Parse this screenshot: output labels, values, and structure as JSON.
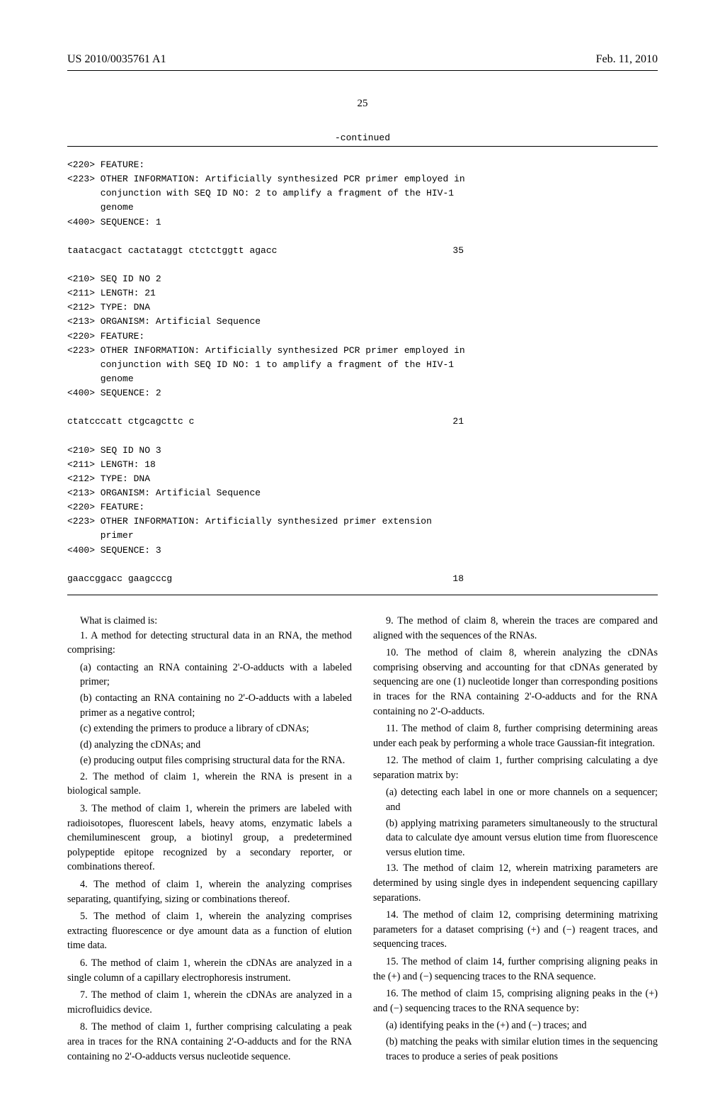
{
  "header": {
    "left": "US 2010/0035761 A1",
    "right": "Feb. 11, 2010"
  },
  "page_number": "25",
  "continued_label": "-continued",
  "sequences": {
    "block1": {
      "lines": [
        "<220> FEATURE:",
        "<223> OTHER INFORMATION: Artificially synthesized PCR primer employed in",
        "      conjunction with SEQ ID NO: 2 to amplify a fragment of the HIV-1",
        "      genome",
        "",
        "<400> SEQUENCE: 1"
      ],
      "data": "taatacgact cactataggt ctctctggtt agacc",
      "data_num": "35"
    },
    "block2": {
      "lines": [
        "<210> SEQ ID NO 2",
        "<211> LENGTH: 21",
        "<212> TYPE: DNA",
        "<213> ORGANISM: Artificial Sequence",
        "<220> FEATURE:",
        "<223> OTHER INFORMATION: Artificially synthesized PCR primer employed in",
        "      conjunction with SEQ ID NO: 1 to amplify a fragment of the HIV-1",
        "      genome",
        "",
        "<400> SEQUENCE: 2"
      ],
      "data": "ctatcccatt ctgcagcttc c",
      "data_num": "21"
    },
    "block3": {
      "lines": [
        "<210> SEQ ID NO 3",
        "<211> LENGTH: 18",
        "<212> TYPE: DNA",
        "<213> ORGANISM: Artificial Sequence",
        "<220> FEATURE:",
        "<223> OTHER INFORMATION: Artificially synthesized primer extension",
        "      primer",
        "",
        "<400> SEQUENCE: 3"
      ],
      "data": "gaaccggacc gaagcccg",
      "data_num": "18"
    }
  },
  "claims": {
    "what_is_claimed": "What is claimed is:",
    "left": {
      "c1_lead": "1. A method for detecting structural data in an RNA, the method comprising:",
      "c1_a": "(a) contacting an RNA containing 2'-O-adducts with a labeled primer;",
      "c1_b": "(b) contacting an RNA containing no 2'-O-adducts with a labeled primer as a negative control;",
      "c1_c": "(c) extending the primers to produce a library of cDNAs;",
      "c1_d": "(d) analyzing the cDNAs; and",
      "c1_e": "(e) producing output files comprising structural data for the RNA.",
      "c2": "2. The method of claim 1, wherein the RNA is present in a biological sample.",
      "c3": "3. The method of claim 1, wherein the primers are labeled with radioisotopes, fluorescent labels, heavy atoms, enzymatic labels a chemiluminescent group, a biotinyl group, a predetermined polypeptide epitope recognized by a secondary reporter, or combinations thereof.",
      "c4": "4. The method of claim 1, wherein the analyzing comprises separating, quantifying, sizing or combinations thereof.",
      "c5": "5. The method of claim 1, wherein the analyzing comprises extracting fluorescence or dye amount data as a function of elution time data.",
      "c6": "6. The method of claim 1, wherein the cDNAs are analyzed in a single column of a capillary electrophoresis instrument.",
      "c7": "7. The method of claim 1, wherein the cDNAs are analyzed in a microfluidics device.",
      "c8": "8. The method of claim 1, further comprising calculating a peak area in traces for the RNA containing 2'-O-adducts and for the RNA containing no 2'-O-adducts versus nucleotide sequence."
    },
    "right": {
      "c9": "9. The method of claim 8, wherein the traces are compared and aligned with the sequences of the RNAs.",
      "c10": "10. The method of claim 8, wherein analyzing the cDNAs comprising observing and accounting for that cDNAs generated by sequencing are one (1) nucleotide longer than corresponding positions in traces for the RNA containing 2'-O-adducts and for the RNA containing no 2'-O-adducts.",
      "c11": "11. The method of claim 8, further comprising determining areas under each peak by performing a whole trace Gaussian-fit integration.",
      "c12_lead": "12. The method of claim 1, further comprising calculating a dye separation matrix by:",
      "c12_a": "(a) detecting each label in one or more channels on a sequencer; and",
      "c12_b": "(b) applying matrixing parameters simultaneously to the structural data to calculate dye amount versus elution time from fluorescence versus elution time.",
      "c13": "13. The method of claim 12, wherein matrixing parameters are determined by using single dyes in independent sequencing capillary separations.",
      "c14": "14. The method of claim 12, comprising determining matrixing parameters for a dataset comprising (+) and (−) reagent traces, and sequencing traces.",
      "c15": "15. The method of claim 14, further comprising aligning peaks in the (+) and (−) sequencing traces to the RNA sequence.",
      "c16_lead": "16. The method of claim 15, comprising aligning peaks in the (+) and (−) sequencing traces to the RNA sequence by:",
      "c16_a": "(a) identifying peaks in the (+) and (−) traces; and",
      "c16_b": "(b) matching the peaks with similar elution times in the sequencing traces to produce a series of peak positions"
    }
  }
}
